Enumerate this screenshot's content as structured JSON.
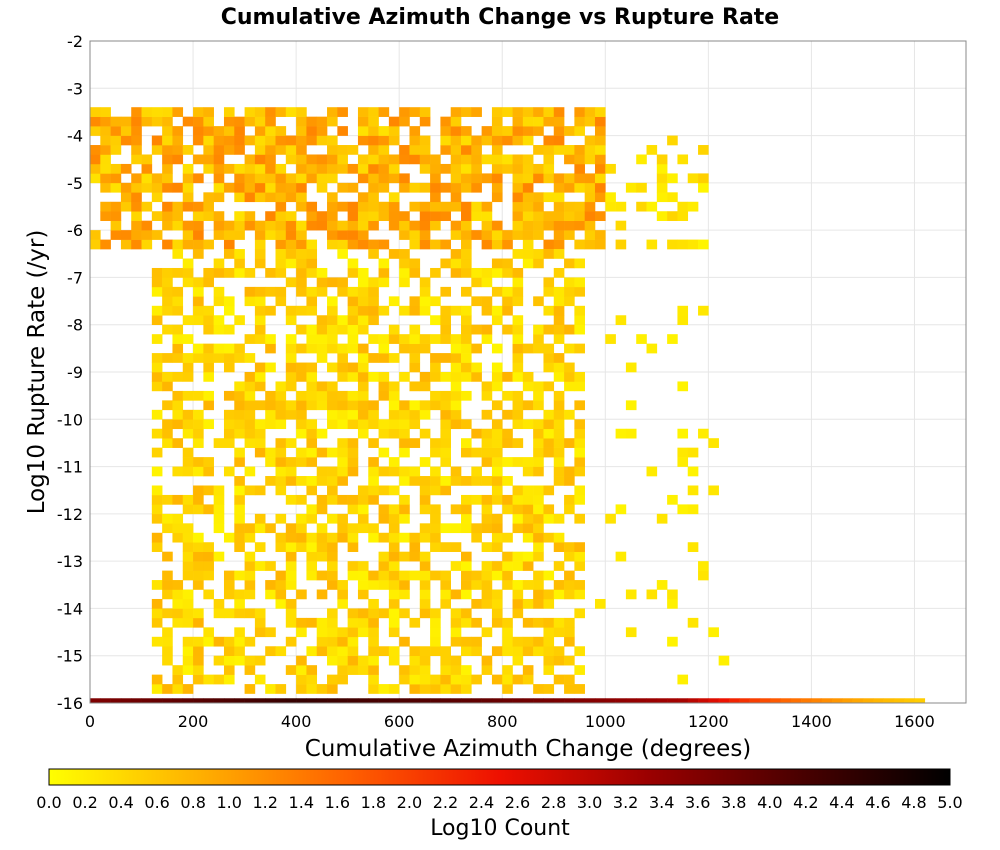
{
  "chart_data": {
    "type": "heatmap",
    "title": "Cumulative Azimuth Change vs Rupture Rate",
    "xlabel": "Cumulative Azimuth Change (degrees)",
    "ylabel": "Log10 Rupture Rate (/yr)",
    "xlim": [
      0,
      1700
    ],
    "ylim": [
      -16,
      -2
    ],
    "x_ticks": [
      "0",
      "200",
      "400",
      "600",
      "800",
      "1000",
      "1200",
      "1400",
      "1600"
    ],
    "y_ticks": [
      "-2",
      "-3",
      "-4",
      "-5",
      "-6",
      "-7",
      "-8",
      "-9",
      "-10",
      "-11",
      "-12",
      "-13",
      "-14",
      "-15",
      "-16"
    ],
    "grid": true,
    "bin_width_x": 20,
    "bin_height_y": 0.2,
    "colorbar": {
      "title": "Log10 Count",
      "range": [
        0,
        5
      ],
      "ticks": [
        "0.0",
        "0.2",
        "0.4",
        "0.6",
        "0.8",
        "1.0",
        "1.2",
        "1.4",
        "1.6",
        "1.8",
        "2.0",
        "2.2",
        "2.4",
        "2.6",
        "2.8",
        "3.0",
        "3.2",
        "3.4",
        "3.6",
        "3.8",
        "4.0",
        "4.2",
        "4.4",
        "4.6",
        "4.8",
        "5.0"
      ],
      "colors": [
        "#ffff00",
        "#ffb000",
        "#ff6000",
        "#ee1000",
        "#9a0000",
        "#4a0000",
        "#000000"
      ]
    },
    "regions": [
      {
        "x_range": [
          0,
          1000
        ],
        "y_range": [
          -6.4,
          -3.4
        ],
        "log10_count_range": [
          0.3,
          1.3
        ],
        "density": 0.72
      },
      {
        "x_range": [
          1000,
          1200
        ],
        "y_range": [
          -6.6,
          -4.0
        ],
        "log10_count_range": [
          0.1,
          0.5
        ],
        "density": 0.25
      },
      {
        "x_range": [
          120,
          960
        ],
        "y_range": [
          -15.8,
          -6.4
        ],
        "log10_count_range": [
          0.1,
          0.8
        ],
        "density": 0.6
      },
      {
        "x_range": [
          960,
          1240
        ],
        "y_range": [
          -15.6,
          -6.8
        ],
        "log10_count_range": [
          0.1,
          0.3
        ],
        "density": 0.09
      }
    ],
    "bottom_row": {
      "y": -16,
      "x_range": [
        0,
        1620
      ],
      "log10_count_by_x": [
        [
          0,
          3.6
        ],
        [
          400,
          4.4
        ],
        [
          700,
          4.0
        ],
        [
          1000,
          3.5
        ],
        [
          1150,
          3.2
        ],
        [
          1250,
          2.3
        ],
        [
          1350,
          1.6
        ],
        [
          1450,
          1.1
        ],
        [
          1520,
          0.8
        ],
        [
          1620,
          0.5
        ]
      ]
    }
  }
}
